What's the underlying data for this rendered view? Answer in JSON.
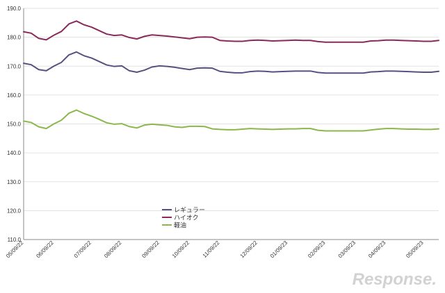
{
  "chart_data": {
    "type": "line",
    "ylim": [
      110,
      190
    ],
    "ytick_labels": [
      "110.0",
      "120.0",
      "130.0",
      "140.0",
      "150.0",
      "160.0",
      "170.0",
      "180.0",
      "190.0"
    ],
    "yticks": [
      110,
      120,
      130,
      140,
      150,
      160,
      170,
      180,
      190
    ],
    "grid": true,
    "legend_position": "center",
    "x_tick_labels": [
      "05/09/22",
      "06/09/22",
      "07/09/22",
      "08/09/22",
      "09/09/22",
      "10/09/22",
      "11/09/22",
      "12/09/22",
      "01/09/23",
      "02/09/23",
      "03/09/23",
      "04/09/23",
      "05/09/23"
    ],
    "x_tick_indices": [
      0,
      4,
      9,
      13,
      18,
      22,
      26,
      31,
      35,
      40,
      44,
      48,
      53
    ],
    "series": [
      {
        "name": "レギュラー",
        "color": "#5a5080",
        "values": [
          171.0,
          170.5,
          168.8,
          168.4,
          170.0,
          171.3,
          173.9,
          174.9,
          173.6,
          172.8,
          171.6,
          170.4,
          169.9,
          170.1,
          168.4,
          167.9,
          168.6,
          169.7,
          170.1,
          169.9,
          169.6,
          169.2,
          168.8,
          169.3,
          169.4,
          169.3,
          168.2,
          167.9,
          167.7,
          167.7,
          168.1,
          168.3,
          168.2,
          168.0,
          168.1,
          168.2,
          168.3,
          168.3,
          168.3,
          167.8,
          167.6,
          167.6,
          167.6,
          167.6,
          167.6,
          167.6,
          168.0,
          168.1,
          168.3,
          168.3,
          168.2,
          168.1,
          168.0,
          167.9,
          167.9,
          168.2
        ]
      },
      {
        "name": "ハイオク",
        "color": "#8a2a5a",
        "values": [
          181.9,
          181.4,
          179.6,
          179.1,
          180.7,
          182.0,
          184.6,
          185.6,
          184.3,
          183.5,
          182.3,
          181.1,
          180.6,
          180.8,
          179.9,
          179.4,
          180.3,
          180.8,
          180.6,
          180.4,
          180.1,
          179.8,
          179.5,
          180.0,
          180.1,
          180.0,
          178.9,
          178.7,
          178.6,
          178.6,
          178.9,
          179.0,
          178.9,
          178.7,
          178.8,
          178.9,
          179.0,
          178.9,
          178.9,
          178.5,
          178.3,
          178.3,
          178.3,
          178.3,
          178.3,
          178.3,
          178.7,
          178.8,
          179.0,
          179.0,
          178.9,
          178.8,
          178.7,
          178.6,
          178.6,
          178.9
        ]
      },
      {
        "name": "軽油",
        "color": "#8ab84a",
        "values": [
          151.0,
          150.5,
          149.0,
          148.4,
          150.0,
          151.3,
          153.7,
          154.8,
          153.6,
          152.7,
          151.6,
          150.4,
          149.9,
          150.1,
          149.1,
          148.6,
          149.6,
          149.9,
          149.7,
          149.5,
          149.0,
          148.8,
          149.2,
          149.2,
          149.1,
          148.3,
          148.1,
          148.0,
          148.0,
          148.2,
          148.4,
          148.3,
          148.2,
          148.1,
          148.2,
          148.3,
          148.3,
          148.4,
          148.4,
          147.8,
          147.6,
          147.6,
          147.6,
          147.6,
          147.6,
          147.6,
          147.9,
          148.2,
          148.4,
          148.4,
          148.3,
          148.2,
          148.2,
          148.1,
          148.1,
          148.3
        ]
      }
    ]
  },
  "watermark": "Response."
}
